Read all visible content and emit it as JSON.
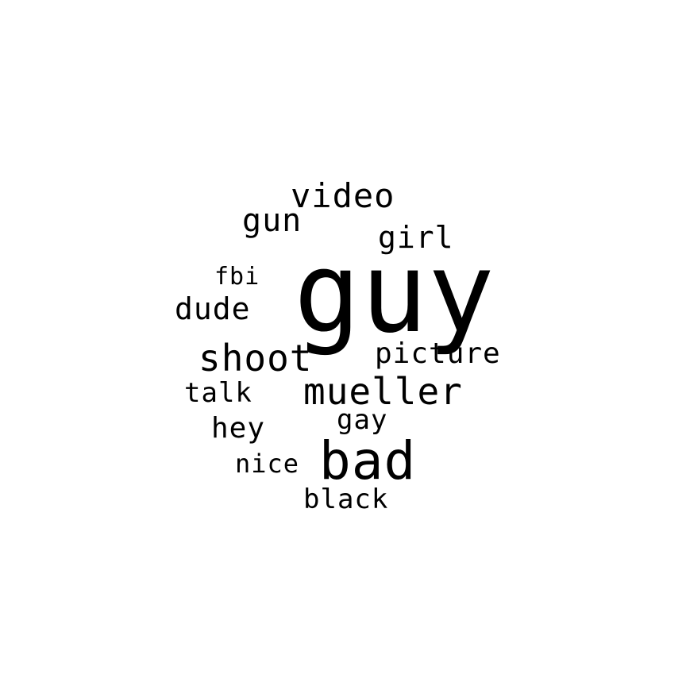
{
  "background_color": "#ffffff",
  "text_color": "#000000",
  "words": {
    "guy": "guy",
    "video": "video",
    "gun": "gun",
    "girl": "girl",
    "fbi": "fbi",
    "dude": "dude",
    "shoot": "shoot",
    "picture": "picture",
    "talk": "talk",
    "mueller": "mueller",
    "hey": "hey",
    "gay": "gay",
    "nice": "nice",
    "bad": "bad",
    "black": "black"
  }
}
